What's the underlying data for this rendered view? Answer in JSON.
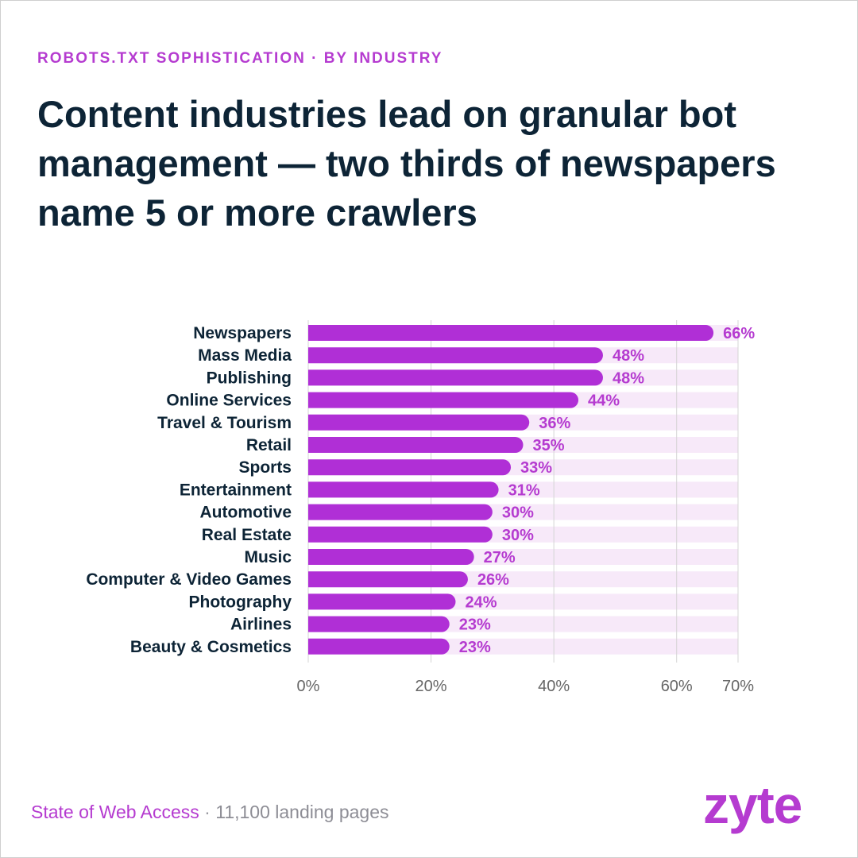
{
  "header": {
    "eyebrow": "ROBOTS.TXT SOPHISTICATION · BY INDUSTRY",
    "title": "Content industries lead on granular bot management — two thirds of newspapers name 5 or more crawlers"
  },
  "footer": {
    "source": "State of Web Access",
    "separator": " · ",
    "pages": "11,100 landing pages",
    "logo": "zyte"
  },
  "colors": {
    "bar": "#b02fd6",
    "track": "#f7e9f9",
    "label_value": "#b53bd0",
    "category_text": "#0d2436",
    "tick_text": "#666666",
    "grid": "#d4d4d4"
  },
  "chart_data": {
    "type": "bar",
    "orientation": "horizontal",
    "categories": [
      "Newspapers",
      "Mass Media",
      "Publishing",
      "Online Services",
      "Travel & Tourism",
      "Retail",
      "Sports",
      "Entertainment",
      "Automotive",
      "Real Estate",
      "Music",
      "Computer & Video Games",
      "Photography",
      "Airlines",
      "Beauty & Cosmetics"
    ],
    "values": [
      66,
      48,
      48,
      44,
      36,
      35,
      33,
      31,
      30,
      30,
      27,
      26,
      24,
      23,
      23
    ],
    "value_labels": [
      "66%",
      "48%",
      "48%",
      "44%",
      "36%",
      "35%",
      "33%",
      "31%",
      "30%",
      "30%",
      "27%",
      "26%",
      "24%",
      "23%",
      "23%"
    ],
    "xlim": [
      0,
      70
    ],
    "xticks": [
      0,
      20,
      40,
      60,
      70
    ],
    "xtick_labels": [
      "0%",
      "20%",
      "40%",
      "60%",
      "70%"
    ],
    "grid": true
  }
}
